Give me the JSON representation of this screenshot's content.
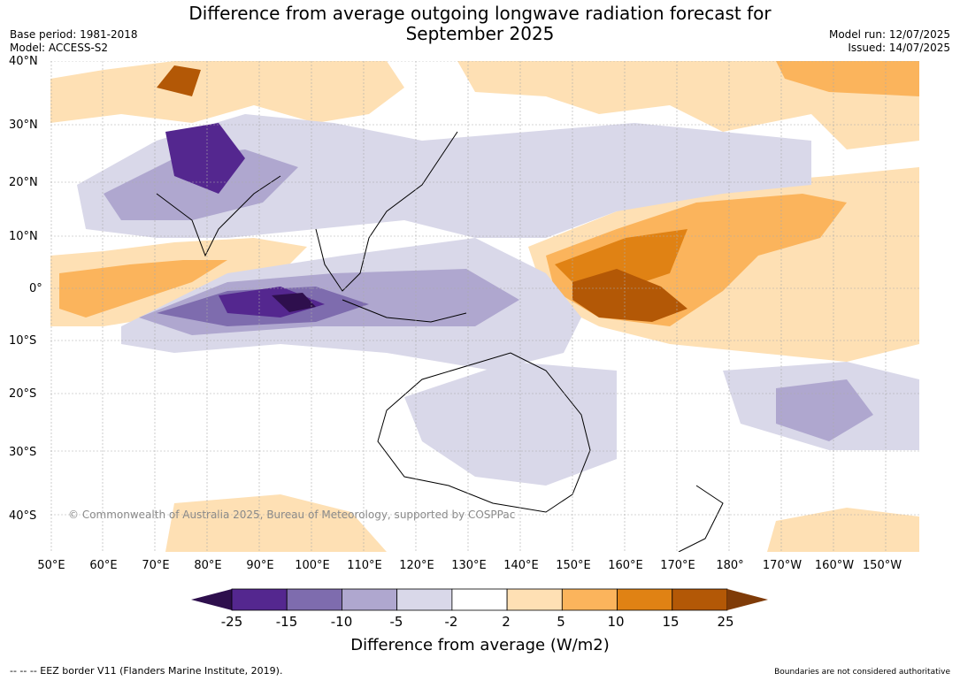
{
  "title_line1": "Difference from average outgoing longwave radiation forecast for",
  "title_line2": "September 2025",
  "meta": {
    "base_period": "Base period: 1981-2018",
    "model": "Model: ACCESS-S2",
    "model_run": "Model run: 12/07/2025",
    "issued": "Issued: 14/07/2025"
  },
  "lat_labels": [
    "40°N",
    "30°N",
    "20°N",
    "10°N",
    "0°",
    "10°S",
    "20°S",
    "30°S",
    "40°S"
  ],
  "lon_labels": [
    "50°E",
    "60°E",
    "70°E",
    "80°E",
    "90°E",
    "100°E",
    "110°E",
    "120°E",
    "130°E",
    "140°E",
    "150°E",
    "160°E",
    "170°E",
    "180°",
    "170°W",
    "160°W",
    "150°W"
  ],
  "copyright": "© Commonwealth of Australia 2025, Bureau of Meteorology, supported by COSPPac",
  "colorbar": {
    "title": "Difference from average (W/m2)",
    "ticks": [
      "-25",
      "-15",
      "-10",
      "-5",
      "-2",
      "2",
      "5",
      "10",
      "15",
      "25"
    ],
    "colors": [
      "#2e0f4d",
      "#54278f",
      "#7e6cae",
      "#afa7cf",
      "#d9d8e9",
      "#ffffff",
      "#fee0b4",
      "#fbb45c",
      "#e08214",
      "#b35806",
      "#7f3b08"
    ]
  },
  "footer_left": "--  --  -- EEZ border V11 (Flanders Marine Institute, 2019).",
  "footer_right": "Boundaries are not considered authoritative"
}
